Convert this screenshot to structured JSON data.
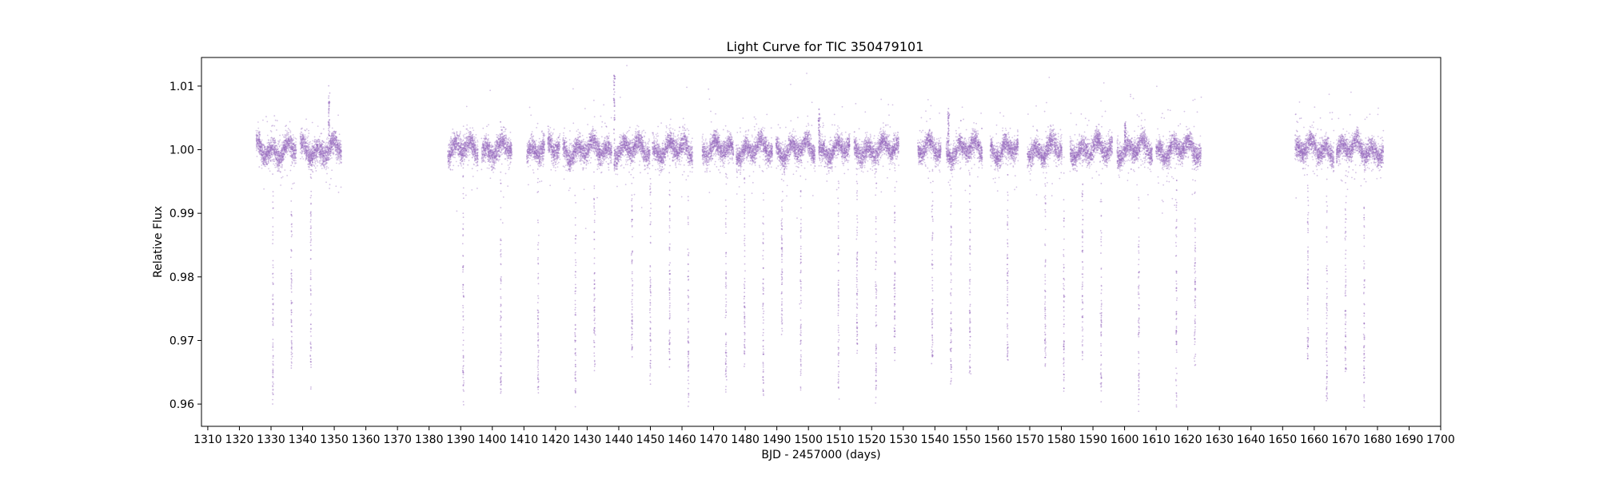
{
  "chart_data": {
    "type": "scatter",
    "title": "Light Curve for TIC 350479101",
    "xlabel": "BJD - 2457000 (days)",
    "ylabel": "Relative Flux",
    "xlim": [
      1308,
      1700
    ],
    "ylim": [
      0.9565,
      1.0145
    ],
    "x_ticks": [
      1310,
      1320,
      1330,
      1340,
      1350,
      1360,
      1370,
      1380,
      1390,
      1400,
      1410,
      1420,
      1430,
      1440,
      1450,
      1460,
      1470,
      1480,
      1490,
      1500,
      1510,
      1520,
      1530,
      1540,
      1550,
      1560,
      1570,
      1580,
      1590,
      1600,
      1610,
      1620,
      1630,
      1640,
      1650,
      1660,
      1670,
      1680,
      1690,
      1700
    ],
    "y_ticks": [
      0.96,
      0.97,
      0.98,
      0.99,
      1.0,
      1.01
    ],
    "y_tick_labels": [
      "0.96",
      "0.97",
      "0.98",
      "0.99",
      "1.00",
      "1.01"
    ],
    "grid": false,
    "marker_color": "#9467bd",
    "baseline_flux": 1.0,
    "baseline_scatter": 0.0015,
    "segments": [
      [
        1325.3,
        1338.0
      ],
      [
        1339.2,
        1352.3
      ],
      [
        1385.9,
        1395.5
      ],
      [
        1396.6,
        1406.2
      ],
      [
        1410.9,
        1416.6
      ],
      [
        1417.5,
        1421.4
      ],
      [
        1422.3,
        1437.8
      ],
      [
        1438.5,
        1449.9
      ],
      [
        1450.6,
        1463.4
      ],
      [
        1466.4,
        1476.3
      ],
      [
        1477.1,
        1488.6
      ],
      [
        1489.7,
        1502.1
      ],
      [
        1503.3,
        1513.1
      ],
      [
        1514.4,
        1528.6
      ],
      [
        1534.6,
        1541.9
      ],
      [
        1543.6,
        1555.0
      ],
      [
        1557.5,
        1566.4
      ],
      [
        1569.2,
        1580.2
      ],
      [
        1582.7,
        1596.2
      ],
      [
        1597.6,
        1608.8
      ],
      [
        1609.9,
        1624.3
      ],
      [
        1653.9,
        1666.2
      ],
      [
        1667.0,
        1681.9
      ]
    ],
    "transits": [
      {
        "t": 1330.6,
        "depth": 0.0395
      },
      {
        "t": 1336.5,
        "depth": 0.034
      },
      {
        "t": 1342.6,
        "depth": 0.037
      },
      {
        "t": 1390.8,
        "depth": 0.039
      },
      {
        "t": 1402.7,
        "depth": 0.039
      },
      {
        "t": 1414.5,
        "depth": 0.038
      },
      {
        "t": 1426.3,
        "depth": 0.039
      },
      {
        "t": 1432.3,
        "depth": 0.035
      },
      {
        "t": 1444.2,
        "depth": 0.032
      },
      {
        "t": 1450.0,
        "depth": 0.036
      },
      {
        "t": 1456.1,
        "depth": 0.034
      },
      {
        "t": 1462.0,
        "depth": 0.0395
      },
      {
        "t": 1473.9,
        "depth": 0.038
      },
      {
        "t": 1479.8,
        "depth": 0.033
      },
      {
        "t": 1485.7,
        "depth": 0.039
      },
      {
        "t": 1491.6,
        "depth": 0.028
      },
      {
        "t": 1497.6,
        "depth": 0.038
      },
      {
        "t": 1509.5,
        "depth": 0.038
      },
      {
        "t": 1515.4,
        "depth": 0.031
      },
      {
        "t": 1521.4,
        "depth": 0.0395
      },
      {
        "t": 1527.3,
        "depth": 0.033
      },
      {
        "t": 1539.2,
        "depth": 0.034
      },
      {
        "t": 1545.1,
        "depth": 0.036
      },
      {
        "t": 1551.1,
        "depth": 0.035
      },
      {
        "t": 1563.0,
        "depth": 0.034
      },
      {
        "t": 1574.9,
        "depth": 0.034
      },
      {
        "t": 1580.8,
        "depth": 0.038
      },
      {
        "t": 1586.7,
        "depth": 0.033
      },
      {
        "t": 1592.6,
        "depth": 0.039
      },
      {
        "t": 1604.5,
        "depth": 0.04
      },
      {
        "t": 1616.4,
        "depth": 0.04
      },
      {
        "t": 1622.3,
        "depth": 0.034
      },
      {
        "t": 1658.0,
        "depth": 0.034
      },
      {
        "t": 1664.0,
        "depth": 0.039
      },
      {
        "t": 1669.9,
        "depth": 0.035
      },
      {
        "t": 1675.8,
        "depth": 0.04
      }
    ],
    "flares": [
      {
        "t": 1438.6,
        "peak": 1.012
      },
      {
        "t": 1544.3,
        "peak": 1.006
      },
      {
        "t": 1348.3,
        "peak": 1.009
      },
      {
        "t": 1503.4,
        "peak": 1.006
      },
      {
        "t": 1600.2,
        "peak": 1.004
      }
    ]
  }
}
